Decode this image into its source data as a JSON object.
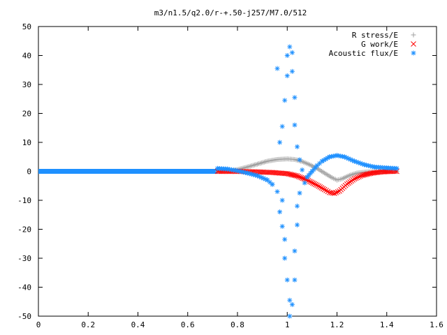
{
  "chart_data": {
    "type": "scatter",
    "title": "m3/n1.5/q2.0/r-+.50-j257/M7.0/512",
    "xlabel": "",
    "ylabel": "",
    "xlim": [
      0,
      1.6
    ],
    "ylim": [
      -50,
      50
    ],
    "x_ticks": [
      "0",
      "0.2",
      "0.4",
      "0.6",
      "0.8",
      "1",
      "1.2",
      "1.4",
      "1.6"
    ],
    "y_ticks": [
      "50",
      "40",
      "30",
      "20",
      "10",
      "0",
      "-10",
      "-20",
      "-30",
      "-40",
      "-50"
    ],
    "legend_position": "top-right",
    "grid": false,
    "series": [
      {
        "name": "R stress/E",
        "marker": "plus",
        "color": "#a0a0a0",
        "points": [
          [
            0.72,
            0.0
          ],
          [
            0.76,
            0.1
          ],
          [
            0.8,
            0.6
          ],
          [
            0.84,
            1.5
          ],
          [
            0.88,
            2.5
          ],
          [
            0.92,
            3.5
          ],
          [
            0.96,
            4.1
          ],
          [
            1.0,
            4.3
          ],
          [
            1.03,
            4.1
          ],
          [
            1.06,
            3.4
          ],
          [
            1.09,
            2.3
          ],
          [
            1.12,
            1.0
          ],
          [
            1.15,
            -0.6
          ],
          [
            1.18,
            -2.2
          ],
          [
            1.2,
            -3.0
          ],
          [
            1.22,
            -2.6
          ],
          [
            1.25,
            -1.4
          ],
          [
            1.28,
            -0.6
          ],
          [
            1.32,
            -0.2
          ],
          [
            1.36,
            -0.1
          ],
          [
            1.4,
            0.0
          ],
          [
            1.44,
            0.0
          ]
        ]
      },
      {
        "name": "G work/E",
        "marker": "cross",
        "color": "#ff0000",
        "points": [
          [
            0.72,
            0.0
          ],
          [
            0.8,
            0.0
          ],
          [
            0.88,
            -0.2
          ],
          [
            0.94,
            -0.4
          ],
          [
            1.0,
            -0.8
          ],
          [
            1.04,
            -1.6
          ],
          [
            1.08,
            -3.0
          ],
          [
            1.12,
            -4.8
          ],
          [
            1.15,
            -6.3
          ],
          [
            1.17,
            -7.3
          ],
          [
            1.19,
            -7.6
          ],
          [
            1.21,
            -6.8
          ],
          [
            1.24,
            -4.4
          ],
          [
            1.27,
            -2.6
          ],
          [
            1.3,
            -1.4
          ],
          [
            1.34,
            -0.6
          ],
          [
            1.38,
            -0.2
          ],
          [
            1.42,
            0.0
          ],
          [
            1.44,
            0.0
          ]
        ]
      },
      {
        "name": "Acoustic flux/E",
        "marker": "star",
        "color": "#1e90ff",
        "points": [
          [
            0.72,
            1.0
          ],
          [
            0.76,
            0.8
          ],
          [
            0.8,
            0.2
          ],
          [
            0.84,
            -0.6
          ],
          [
            0.88,
            -1.5
          ],
          [
            0.92,
            -3.0
          ],
          [
            0.94,
            -4.5
          ],
          [
            0.96,
            -7.0
          ],
          [
            0.98,
            -10.0
          ],
          [
            0.96,
            35.5
          ],
          [
            0.97,
            -14.0
          ],
          [
            0.97,
            10.0
          ],
          [
            0.98,
            -19.0
          ],
          [
            0.98,
            15.5
          ],
          [
            0.99,
            -23.5
          ],
          [
            0.99,
            24.5
          ],
          [
            0.99,
            -30.0
          ],
          [
            1.0,
            33.0
          ],
          [
            1.0,
            -37.5
          ],
          [
            1.0,
            40.0
          ],
          [
            1.01,
            -44.5
          ],
          [
            1.01,
            43.0
          ],
          [
            1.01,
            -50.0
          ],
          [
            1.02,
            41.0
          ],
          [
            1.02,
            -46.0
          ],
          [
            1.02,
            34.5
          ],
          [
            1.03,
            -37.5
          ],
          [
            1.03,
            25.5
          ],
          [
            1.03,
            -27.5
          ],
          [
            1.03,
            16.0
          ],
          [
            1.04,
            -18.5
          ],
          [
            1.04,
            8.5
          ],
          [
            1.04,
            -12.0
          ],
          [
            1.05,
            4.0
          ],
          [
            1.05,
            -7.5
          ],
          [
            1.06,
            0.5
          ],
          [
            1.07,
            -4.0
          ],
          [
            1.08,
            -2.0
          ],
          [
            1.1,
            0.0
          ],
          [
            1.12,
            2.0
          ],
          [
            1.14,
            3.5
          ],
          [
            1.17,
            5.0
          ],
          [
            1.2,
            5.5
          ],
          [
            1.23,
            5.0
          ],
          [
            1.27,
            3.5
          ],
          [
            1.31,
            2.3
          ],
          [
            1.35,
            1.5
          ],
          [
            1.4,
            1.2
          ],
          [
            1.44,
            1.0
          ]
        ]
      }
    ]
  }
}
